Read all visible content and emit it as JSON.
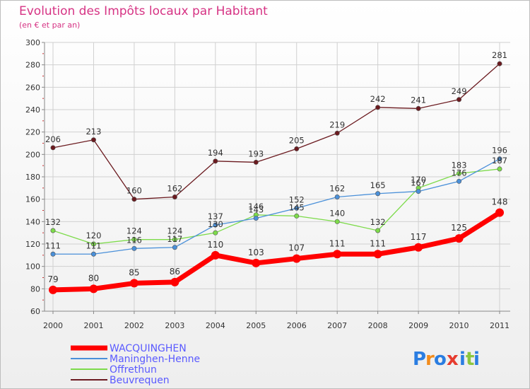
{
  "chart_data": {
    "type": "line",
    "title": "Evolution des Impôts locaux par Habitant",
    "subtitle": "(en € et par an)",
    "xlabel": "",
    "ylabel": "",
    "x": [
      "2000",
      "2001",
      "2002",
      "2003",
      "2004",
      "2005",
      "2006",
      "2007",
      "2008",
      "2009",
      "2010",
      "2011"
    ],
    "ylim": [
      60,
      300
    ],
    "yticks": [
      60,
      80,
      100,
      120,
      140,
      160,
      180,
      200,
      220,
      240,
      260,
      280,
      300
    ],
    "ytick_labels": [
      "60",
      "80",
      "100",
      "120",
      "140",
      "160",
      "180",
      "200",
      "220",
      "240",
      "260",
      "280",
      "300"
    ],
    "grid": true,
    "legend_position": "bottom-left",
    "series": [
      {
        "name": "Beuvrequen",
        "color": "#6b1a1f",
        "values": [
          206,
          213,
          160,
          162,
          194,
          193,
          205,
          219,
          242,
          241,
          249,
          281
        ],
        "labels": [
          "206",
          "213",
          "160",
          "162",
          "194",
          "193",
          "205",
          "219",
          "242",
          "241",
          "249",
          "281"
        ]
      },
      {
        "name": "Offrethun",
        "color": "#7ddb4a",
        "values": [
          132,
          120,
          124,
          124,
          130,
          146,
          145,
          140,
          132,
          170,
          183,
          187
        ],
        "labels": [
          "132",
          "120",
          "124",
          "124",
          "130",
          "146",
          "145",
          "140",
          "132",
          "170",
          "183",
          "187"
        ]
      },
      {
        "name": "Maninghen-Henne",
        "color": "#4a90d9",
        "values": [
          111,
          111,
          116,
          117,
          137,
          143,
          152,
          162,
          165,
          167,
          176,
          196
        ],
        "labels": [
          "111",
          "111",
          "116",
          "117",
          "137",
          "143",
          "152",
          "162",
          "165",
          "167",
          "176",
          "196"
        ]
      },
      {
        "name": "WACQUINGHEN",
        "color": "#ff0000",
        "values": [
          79,
          80,
          85,
          86,
          110,
          103,
          107,
          111,
          111,
          117,
          125,
          148
        ],
        "labels": [
          "79",
          "80",
          "85",
          "86",
          "110",
          "103",
          "107",
          "111",
          "111",
          "117",
          "125",
          "148"
        ]
      }
    ],
    "legend": [
      {
        "name": "WACQUINGHEN",
        "color": "#ff0000",
        "text_color": "#5a5aff"
      },
      {
        "name": "Maninghen-Henne",
        "color": "#4a90d9",
        "text_color": "#5a5aff"
      },
      {
        "name": "Offrethun",
        "color": "#7ddb4a",
        "text_color": "#5a5aff"
      },
      {
        "name": "Beuvrequen",
        "color": "#6b1a1f",
        "text_color": "#5a5aff"
      }
    ]
  },
  "logo": {
    "letters": [
      "P",
      "r",
      "o",
      "x",
      "i",
      "t",
      "i"
    ],
    "colors": [
      "#2a7de1",
      "#f28c1c",
      "#2a7de1",
      "#e63b2e",
      "#2a7de1",
      "#8cc63f",
      "#2a7de1"
    ]
  }
}
